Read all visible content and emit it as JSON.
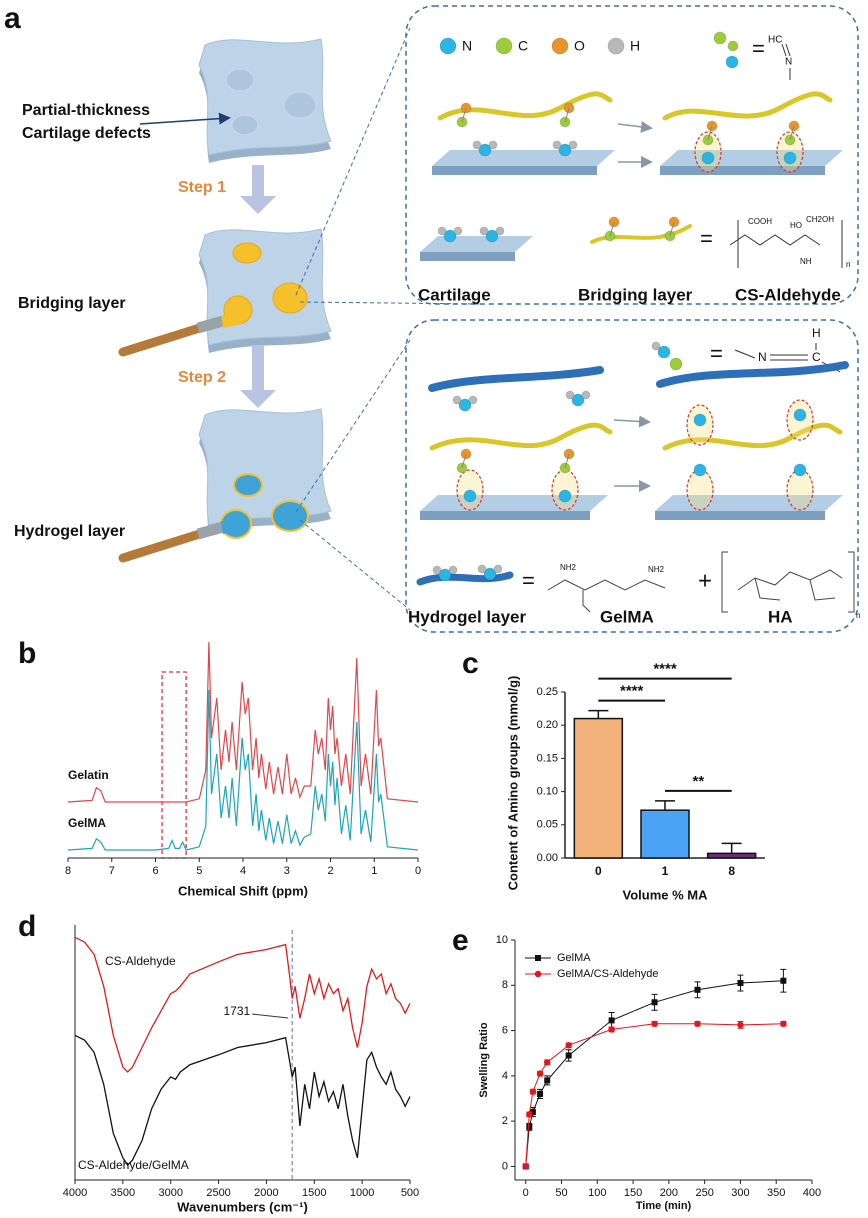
{
  "panel_labels": {
    "a": "a",
    "b": "b",
    "c": "c",
    "d": "d",
    "e": "e"
  },
  "panel_a": {
    "defect_label": [
      "Partial-thickness",
      "Cartilage defects"
    ],
    "step1": "Step 1",
    "step2": "Step 2",
    "bridging": "Bridging layer",
    "hydrogel": "Hydrogel layer",
    "box1": {
      "atoms": [
        {
          "label": "N",
          "color": "#2bb5e6"
        },
        {
          "label": "C",
          "color": "#9ccc3a"
        },
        {
          "label": "O",
          "color": "#e8962a"
        },
        {
          "label": "H",
          "color": "#b8b8b8"
        }
      ],
      "equals": [
        "=",
        "="
      ],
      "imine": [
        "HC",
        "N"
      ],
      "structure": [
        "COOH",
        "HO",
        "CH2OH",
        "NH",
        "n"
      ],
      "captions": [
        "Cartilage",
        "Bridging layer",
        "CS-Aldehyde"
      ]
    },
    "box2": {
      "equals": [
        "=",
        "="
      ],
      "plus": "+",
      "imine": [
        "N",
        "C",
        "H"
      ],
      "structure": [
        "NH2",
        "NH2",
        "n"
      ],
      "captions": [
        "Hydrogel layer",
        "GelMA",
        "HA"
      ]
    }
  },
  "chart_data": [
    {
      "type": "line",
      "x": [
        8,
        7.45,
        7.35,
        7.25,
        7.15,
        6.0,
        5.7,
        5.62,
        5.55,
        5.45,
        5.38,
        5.3,
        5.0,
        4.85,
        4.78,
        4.72,
        4.6,
        4.5,
        4.4,
        4.32,
        4.25,
        4.15,
        4.02,
        3.95,
        3.88,
        3.78,
        3.7,
        3.64,
        3.58,
        3.48,
        3.4,
        3.3,
        3.2,
        3.1,
        3.0,
        2.9,
        2.8,
        2.7,
        2.6,
        2.45,
        2.35,
        2.28,
        2.2,
        2.12,
        2.05,
        2.0,
        1.95,
        1.9,
        1.85,
        1.75,
        1.65,
        1.55,
        1.4,
        1.3,
        1.2,
        1.08,
        0.95,
        0.9,
        0.85,
        0.7,
        0
      ],
      "series": [
        {
          "name": "Gelatin",
          "color": "#e0474c",
          "values": [
            0,
            1,
            9,
            7,
            0,
            0,
            0,
            0,
            0,
            0,
            0,
            0,
            2,
            20,
            100,
            40,
            65,
            20,
            45,
            25,
            50,
            20,
            75,
            55,
            65,
            20,
            40,
            15,
            30,
            8,
            25,
            5,
            22,
            5,
            30,
            5,
            15,
            3,
            10,
            10,
            45,
            30,
            40,
            20,
            65,
            45,
            60,
            30,
            40,
            10,
            30,
            5,
            90,
            10,
            30,
            5,
            70,
            35,
            40,
            2,
            0
          ]
        },
        {
          "name": "GelMA",
          "color": "#1aa6b7",
          "values": [
            0,
            1,
            7,
            5,
            0,
            0,
            1,
            6,
            1,
            1,
            5,
            0,
            2,
            15,
            100,
            35,
            60,
            20,
            40,
            20,
            45,
            15,
            70,
            50,
            60,
            15,
            35,
            12,
            25,
            6,
            20,
            4,
            18,
            4,
            22,
            4,
            12,
            3,
            8,
            10,
            40,
            25,
            35,
            18,
            60,
            40,
            55,
            28,
            45,
            10,
            28,
            6,
            80,
            10,
            25,
            5,
            60,
            30,
            35,
            2,
            0
          ]
        }
      ],
      "xlim": [
        8,
        0
      ],
      "xticks": [
        8,
        7,
        6,
        5,
        4,
        3,
        2,
        1,
        0
      ],
      "ylim": [
        0,
        100
      ],
      "xlabel": "Chemical Shift (ppm)",
      "highlight": [
        5.85,
        5.3
      ]
    },
    {
      "type": "bar",
      "categories": [
        "0",
        "1",
        "8"
      ],
      "values": [
        0.21,
        0.072,
        0.007
      ],
      "errors": [
        0.012,
        0.014,
        0.015
      ],
      "colors": [
        "#f2b27a",
        "#4aa3f5",
        "#6a2c80"
      ],
      "ylim": [
        0,
        0.25
      ],
      "yticks": [
        {
          "value": 0,
          "label": "0.00"
        },
        0.05,
        {
          "value": 0.1,
          "label": "0.10"
        },
        0.15,
        {
          "value": 0.2,
          "label": "0.20"
        },
        0.25
      ],
      "ylabel": "Content of Amino groups (mmol/g)",
      "xlabel": "Volume % MA",
      "significance": [
        {
          "label": "****",
          "from": 0,
          "to": 2
        },
        {
          "label": "****",
          "from": 0,
          "to": 1
        },
        {
          "label": "**",
          "from": 1,
          "to": 2
        }
      ]
    },
    {
      "type": "line",
      "x": [
        4000,
        3900,
        3800,
        3700,
        3600,
        3500,
        3450,
        3400,
        3300,
        3200,
        3100,
        3000,
        2950,
        2900,
        2800,
        2500,
        2300,
        2000,
        1800,
        1760,
        1731,
        1700,
        1650,
        1600,
        1550,
        1500,
        1450,
        1400,
        1350,
        1300,
        1250,
        1200,
        1150,
        1100,
        1050,
        1000,
        950,
        900,
        850,
        800,
        750,
        700,
        650,
        600,
        550,
        500
      ],
      "series": [
        {
          "name": "CS-Aldehyde",
          "color": "#e01b1b",
          "values": [
            95,
            93,
            88,
            75,
            55,
            42,
            40,
            42,
            50,
            58,
            65,
            72,
            73,
            75,
            80,
            85,
            88,
            90,
            92,
            80,
            70,
            75,
            62,
            70,
            80,
            72,
            78,
            70,
            76,
            72,
            74,
            65,
            70,
            58,
            50,
            60,
            75,
            82,
            78,
            80,
            72,
            76,
            70,
            68,
            64,
            68
          ]
        },
        {
          "name": "CS-Aldehyde/GelMA",
          "color": "#111111",
          "values": [
            55,
            53,
            48,
            35,
            15,
            5,
            2,
            4,
            12,
            25,
            33,
            38,
            37,
            40,
            43,
            47,
            50,
            52,
            54,
            45,
            38,
            42,
            18,
            35,
            25,
            40,
            30,
            36,
            28,
            32,
            25,
            35,
            22,
            12,
            5,
            25,
            45,
            48,
            42,
            38,
            35,
            40,
            33,
            30,
            26,
            30
          ]
        }
      ],
      "xlim": [
        4000,
        500
      ],
      "xticks": [
        4000,
        3500,
        3000,
        2500,
        2000,
        1500,
        1000,
        500
      ],
      "ylim": [
        0,
        100
      ],
      "xlabel": "Wavenumbers (cm⁻¹)",
      "annotation": {
        "label": "1731",
        "x": 1731
      }
    },
    {
      "type": "line",
      "x": [
        0,
        5,
        10,
        20,
        30,
        60,
        120,
        180,
        240,
        300,
        360
      ],
      "series": [
        {
          "name": "GelMA",
          "color": "#111111",
          "marker": "square",
          "values": [
            0,
            1.75,
            2.4,
            3.2,
            3.8,
            4.9,
            6.45,
            7.25,
            7.8,
            8.1,
            8.2
          ],
          "errors": [
            0,
            0.15,
            0.2,
            0.2,
            0.2,
            0.25,
            0.35,
            0.35,
            0.35,
            0.35,
            0.5
          ]
        },
        {
          "name": "GelMA/CS-Aldehyde",
          "color": "#e8141c",
          "marker": "circle",
          "values": [
            0,
            2.3,
            3.3,
            4.1,
            4.6,
            5.35,
            6.05,
            6.3,
            6.3,
            6.25,
            6.3
          ],
          "errors": [
            0,
            0.1,
            0.1,
            0.1,
            0.1,
            0.1,
            0.1,
            0.1,
            0.1,
            0.15,
            0.1
          ]
        }
      ],
      "xlim": [
        -15,
        400
      ],
      "xticks": [
        0,
        50,
        100,
        150,
        200,
        250,
        300,
        350,
        400
      ],
      "ylim": [
        -0.6,
        10
      ],
      "yticks": [
        0,
        2,
        4,
        6,
        8,
        10
      ],
      "xlabel": "Time (min)",
      "ylabel": "Swelling Ratio",
      "legend": "upper left"
    }
  ]
}
